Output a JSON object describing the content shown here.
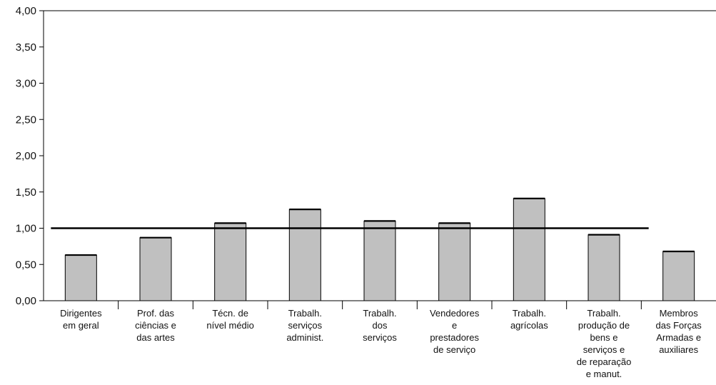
{
  "chart_data": {
    "type": "bar",
    "title": "",
    "xlabel": "",
    "ylabel": "",
    "ylim": [
      0,
      4
    ],
    "yticks": [
      "0,00",
      "0,50",
      "1,00",
      "1,50",
      "2,00",
      "2,50",
      "3,00",
      "3,50",
      "4,00"
    ],
    "categories": [
      [
        "Dirigentes",
        "em geral"
      ],
      [
        "Prof. das",
        "ciências e",
        "das artes"
      ],
      [
        "Técn. de",
        "nível médio"
      ],
      [
        "Trabalh.",
        "serviços",
        "administ."
      ],
      [
        "Trabalh.",
        "dos",
        "serviços"
      ],
      [
        "Vendedores",
        "e",
        "prestadores",
        "de serviço"
      ],
      [
        "Trabalh.",
        "agrícolas"
      ],
      [
        "Trabalh.",
        "produção de",
        "bens e",
        "serviços e",
        "de reparação",
        "e manut."
      ],
      [
        "Membros",
        "das Forças",
        "Armadas e",
        "auxiliares"
      ]
    ],
    "values": [
      0.63,
      0.87,
      1.07,
      1.26,
      1.1,
      1.07,
      1.41,
      0.91,
      0.68
    ],
    "reference_line": 1.0,
    "grid": false,
    "legend": "none",
    "colors": {
      "bar": "#c0c0c0",
      "stroke": "#000000"
    }
  }
}
